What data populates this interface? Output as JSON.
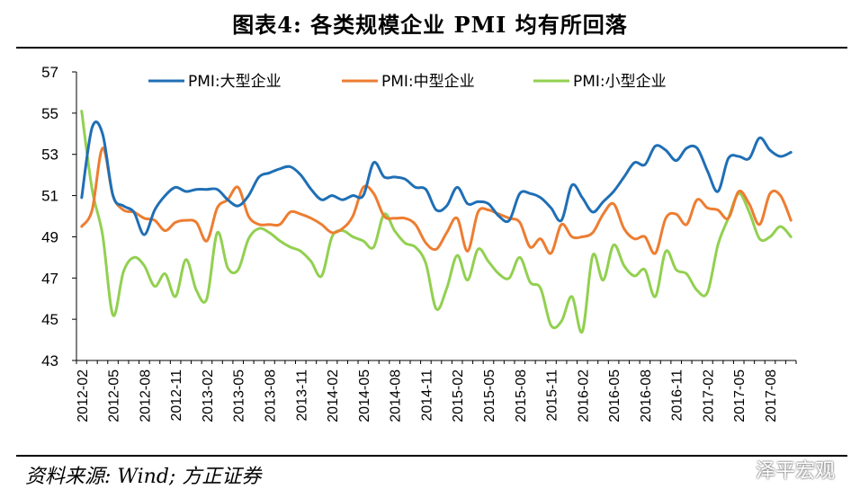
{
  "header": {
    "title": "图表4:   各类规模企业 PMI 均有所回落"
  },
  "footer": {
    "source": "资料来源: Wind; 方正证券",
    "watermark": "泽平宏观"
  },
  "colors": {
    "large": "#1F6FB5",
    "medium": "#ED7D31",
    "small": "#92D050"
  },
  "chart_data": {
    "type": "line",
    "title": "",
    "xlabel": "",
    "ylabel": "",
    "ylim": [
      43,
      57
    ],
    "yticks": [
      43,
      45,
      47,
      49,
      51,
      53,
      55,
      57
    ],
    "xtick_labels": [
      "2012-02",
      "2012-05",
      "2012-08",
      "2012-11",
      "2013-02",
      "2013-05",
      "2013-08",
      "2013-11",
      "2014-02",
      "2014-05",
      "2014-08",
      "2014-11",
      "2015-02",
      "2015-05",
      "2015-08",
      "2015-11",
      "2016-02",
      "2016-05",
      "2016-08",
      "2016-11",
      "2017-02",
      "2017-05",
      "2017-08"
    ],
    "x": [
      "2012-02",
      "2012-03",
      "2012-04",
      "2012-05",
      "2012-06",
      "2012-07",
      "2012-08",
      "2012-09",
      "2012-10",
      "2012-11",
      "2012-12",
      "2013-01",
      "2013-02",
      "2013-03",
      "2013-04",
      "2013-05",
      "2013-06",
      "2013-07",
      "2013-08",
      "2013-09",
      "2013-10",
      "2013-11",
      "2013-12",
      "2014-01",
      "2014-02",
      "2014-03",
      "2014-04",
      "2014-05",
      "2014-06",
      "2014-07",
      "2014-08",
      "2014-09",
      "2014-10",
      "2014-11",
      "2014-12",
      "2015-01",
      "2015-02",
      "2015-03",
      "2015-04",
      "2015-05",
      "2015-06",
      "2015-07",
      "2015-08",
      "2015-09",
      "2015-10",
      "2015-11",
      "2015-12",
      "2016-01",
      "2016-02",
      "2016-03",
      "2016-04",
      "2016-05",
      "2016-06",
      "2016-07",
      "2016-08",
      "2016-09",
      "2016-10",
      "2016-11",
      "2016-12",
      "2017-01",
      "2017-02",
      "2017-03",
      "2017-04",
      "2017-05",
      "2017-06",
      "2017-07",
      "2017-08",
      "2017-09",
      "2017-10"
    ],
    "legend_position": "top",
    "series": [
      {
        "name": "PMI:大型企业",
        "color": "#1F6FB5",
        "values": [
          50.9,
          54.3,
          54.0,
          51.0,
          50.5,
          50.2,
          49.1,
          50.3,
          51.0,
          51.4,
          51.2,
          51.3,
          51.3,
          51.3,
          50.8,
          50.5,
          51.0,
          51.9,
          52.1,
          52.3,
          52.4,
          52.0,
          51.3,
          50.8,
          51.0,
          50.8,
          51.0,
          51.0,
          52.6,
          51.9,
          51.9,
          51.8,
          51.4,
          51.3,
          50.3,
          50.5,
          51.4,
          50.6,
          50.7,
          50.6,
          50.0,
          49.8,
          51.1,
          51.1,
          50.9,
          50.4,
          49.8,
          51.5,
          50.9,
          50.2,
          50.7,
          51.2,
          51.9,
          52.6,
          52.5,
          53.4,
          53.2,
          52.7,
          53.3,
          53.3,
          52.2,
          51.2,
          52.8,
          52.9,
          52.8,
          53.8,
          53.2,
          52.9,
          53.1
        ]
      },
      {
        "name": "PMI:中型企业",
        "color": "#ED7D31",
        "values": [
          49.5,
          50.3,
          53.3,
          51.0,
          50.3,
          50.2,
          49.9,
          49.8,
          49.3,
          49.7,
          49.8,
          49.7,
          48.8,
          50.4,
          50.8,
          51.4,
          50.0,
          49.6,
          49.6,
          49.6,
          50.2,
          50.1,
          49.9,
          49.6,
          49.2,
          49.4,
          50.0,
          51.4,
          51.1,
          50.0,
          49.9,
          49.9,
          49.6,
          48.7,
          48.4,
          49.2,
          49.9,
          48.3,
          50.2,
          50.3,
          50.1,
          49.9,
          49.7,
          48.5,
          48.9,
          48.2,
          49.6,
          49.0,
          49.0,
          49.2,
          50.1,
          50.6,
          49.4,
          48.9,
          49.0,
          48.2,
          49.9,
          50.1,
          49.6,
          50.8,
          50.4,
          50.3,
          49.9,
          51.2,
          50.6,
          49.6,
          51.1,
          51.0,
          49.8
        ]
      },
      {
        "name": "PMI:小型企业",
        "color": "#92D050",
        "values": [
          55.1,
          51.3,
          49.1,
          45.2,
          47.3,
          48.0,
          47.6,
          46.6,
          47.2,
          46.1,
          47.9,
          46.4,
          46.0,
          49.2,
          47.5,
          47.4,
          48.9,
          49.4,
          49.2,
          48.8,
          48.5,
          48.3,
          47.8,
          47.1,
          49.0,
          49.3,
          49.0,
          48.8,
          48.5,
          50.1,
          49.3,
          48.7,
          48.5,
          47.7,
          45.5,
          46.5,
          48.1,
          46.9,
          48.4,
          47.8,
          47.2,
          47.0,
          48.0,
          46.8,
          46.5,
          44.7,
          44.9,
          46.1,
          44.4,
          48.1,
          46.9,
          48.6,
          47.6,
          47.1,
          47.4,
          46.1,
          48.3,
          47.4,
          47.2,
          46.4,
          46.3,
          48.6,
          49.9,
          51.1,
          50.2,
          48.9,
          49.0,
          49.5,
          49.0
        ]
      }
    ]
  }
}
